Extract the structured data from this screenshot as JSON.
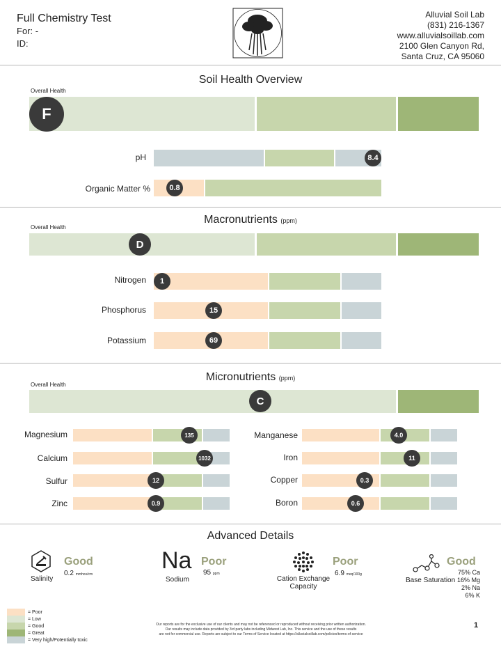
{
  "header": {
    "title": "Full Chemistry Test",
    "for_label": "For:  -",
    "id_label": "ID:",
    "lab_name": "Alluvial Soil Lab",
    "phone": "(831) 216-1367",
    "website": "www.alluvialsoillab.com",
    "address1": "2100 Glen Canyon Rd,",
    "address2": "Santa Cruz, CA 95060"
  },
  "soil_health": {
    "title": "Soil Health Overview",
    "overall_label": "Overall Health",
    "grade": "F",
    "ph_label": "pH",
    "ph_value": "8.4",
    "om_label": "Organic Matter %",
    "om_value": "0.8"
  },
  "macro": {
    "title": "Macronutrients",
    "unit": "(ppm)",
    "overall_label": "Overall Health",
    "grade": "D",
    "nitrogen_label": "Nitrogen",
    "nitrogen_value": "1",
    "phosphorus_label": "Phosphorus",
    "phosphorus_value": "15",
    "potassium_label": "Potassium",
    "potassium_value": "69"
  },
  "micro": {
    "title": "Micronutrients",
    "unit": "(ppm)",
    "overall_label": "Overall Health",
    "grade": "C",
    "magnesium_label": "Magnesium",
    "magnesium_value": "135",
    "calcium_label": "Calcium",
    "calcium_value": "1032",
    "sulfur_label": "Sulfur",
    "sulfur_value": "12",
    "zinc_label": "Zinc",
    "zinc_value": "0.9",
    "manganese_label": "Manganese",
    "manganese_value": "4.0",
    "iron_label": "Iron",
    "iron_value": "11",
    "copper_label": "Copper",
    "copper_value": "0.3",
    "boron_label": "Boron",
    "boron_value": "0.6"
  },
  "advanced": {
    "title": "Advanced Details",
    "salinity_label": "Salinity",
    "salinity_status": "Good",
    "salinity_value": "0.2",
    "salinity_unit": "mmhos/cm",
    "sodium_symbol": "Na",
    "sodium_label": "Sodium",
    "sodium_status": "Poor",
    "sodium_value": "95",
    "sodium_unit": "ppm",
    "cec_label1": "Cation Exchange",
    "cec_label2": "Capacity",
    "cec_status": "Poor",
    "cec_value": "6.9",
    "cec_unit": "meq/100g",
    "base_label": "Base Saturation",
    "base_status": "Good",
    "base_ca": "75% Ca",
    "base_mg": "16% Mg",
    "base_na": "2% Na",
    "base_k": "6% K"
  },
  "legend": {
    "poor": "= Poor",
    "low": "= Low",
    "good": "= Good",
    "great": "= Great",
    "vhigh": "= Very high/Potentially toxic"
  },
  "colors": {
    "poor": "#fce0c4",
    "low": "#dde6d3",
    "good": "#c7d6ac",
    "great": "#9eb677",
    "vhigh": "#c9d4d7"
  },
  "footer": {
    "line1": "Our reports are for the exclusive use of our clients and may not be referenced or reproduced without receiving prior written authorization.",
    "line2": "Our results may include data provided by 3rd party labs including Midwest Lab, Inc. This service and the use of these results",
    "line3": "are not for commercial use. Reports are subject to our Terms of Service located at https://alluvialsoillab.com/policies/terms-of-service",
    "page_number": "1"
  }
}
